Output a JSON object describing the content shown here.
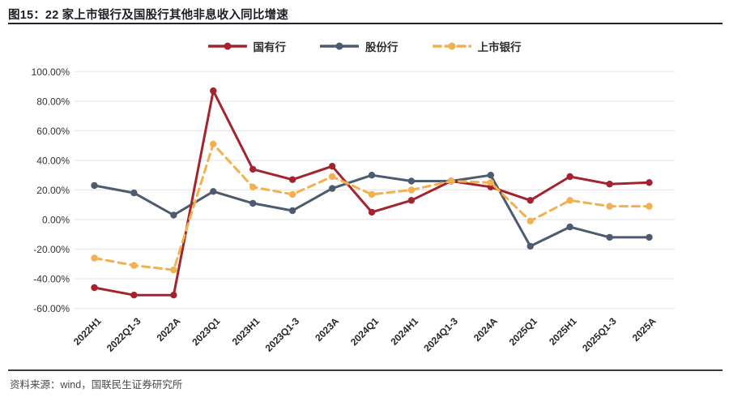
{
  "header": {
    "title": "图15：22 家上市银行及国股行其他非息收入同比增速"
  },
  "footer": {
    "source": "资料来源：wind，国联民生证券研究所"
  },
  "chart_data": {
    "type": "line",
    "title": "22 家上市银行及国股行其他非息收入同比增速",
    "categories": [
      "2022H1",
      "2022Q1-3",
      "2022A",
      "2023Q1",
      "2023H1",
      "2023Q1-3",
      "2023A",
      "2024Q1",
      "2024H1",
      "2024Q1-3",
      "2024A",
      "2025Q1",
      "2025H1",
      "2025Q1-3",
      "2025A"
    ],
    "series": [
      {
        "name": "国有行",
        "color": "#A3242E",
        "style": "solid",
        "values": [
          -46,
          -51,
          -51,
          87,
          34,
          27,
          36,
          5,
          13,
          26,
          22,
          13,
          29,
          24,
          25
        ]
      },
      {
        "name": "股份行",
        "color": "#4C5B6F",
        "style": "solid",
        "values": [
          23,
          18,
          3,
          19,
          11,
          6,
          21,
          30,
          26,
          26,
          30,
          -18,
          -5,
          -12,
          -12
        ]
      },
      {
        "name": "上市银行",
        "color": "#F2B04E",
        "style": "dashed",
        "values": [
          -26,
          -31,
          -34,
          51,
          22,
          17,
          29,
          17,
          20,
          26,
          25,
          -1,
          13,
          9,
          9
        ]
      }
    ],
    "ylabel": "",
    "xlabel": "",
    "ylim": [
      -60,
      100
    ],
    "ytick_step": 20,
    "ytick_labels": [
      "100.00%",
      "80.00%",
      "60.00%",
      "40.00%",
      "20.00%",
      "0.00%",
      "-20.00%",
      "-40.00%",
      "-60.00%"
    ],
    "grid": "horizontal",
    "grid_color": "#e7e7e7",
    "legend_position": "top",
    "axis_text_color": "#333333"
  }
}
